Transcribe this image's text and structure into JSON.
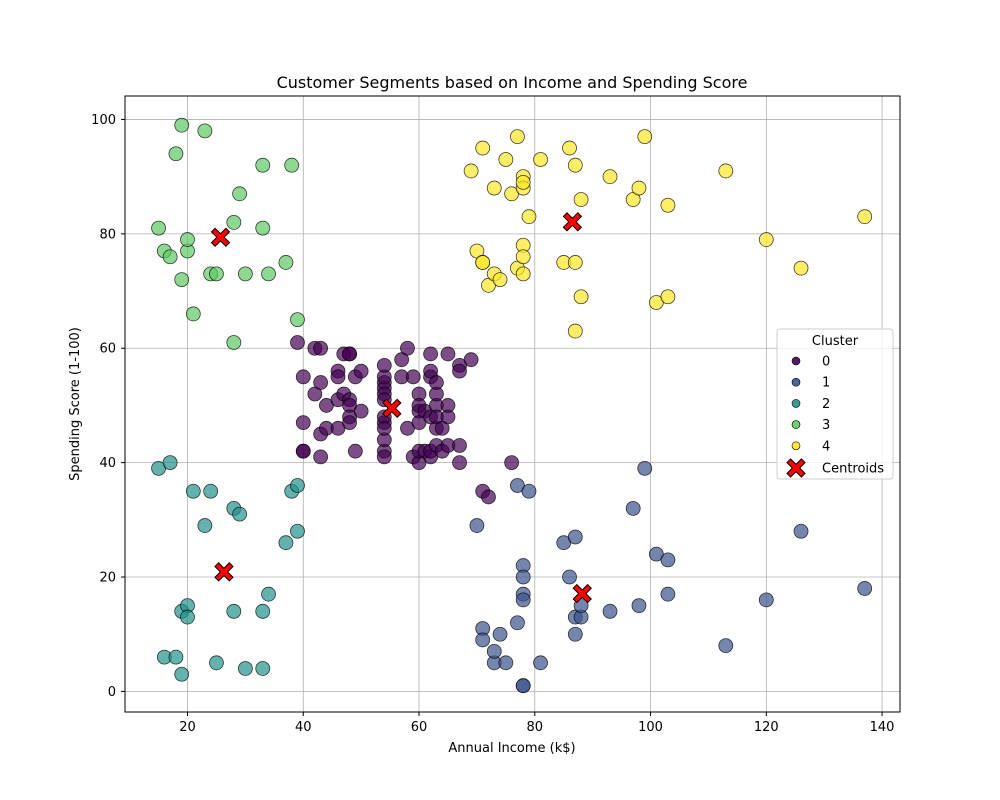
{
  "chart_data": {
    "type": "scatter",
    "title": "Customer Segments based on Income and Spending Score",
    "xlabel": "Annual Income (k$)",
    "ylabel": "Spending Score (1-100)",
    "xlim": [
      9.2,
      143.1
    ],
    "ylim": [
      -3.6,
      104.1
    ],
    "xticks": [
      20,
      40,
      60,
      80,
      100,
      120,
      140
    ],
    "yticks": [
      0,
      20,
      40,
      60,
      80,
      100
    ],
    "grid": true,
    "legend": {
      "title": "Cluster",
      "placement": "center-right"
    },
    "series": [
      {
        "name": "0",
        "color": "#440154",
        "points": [
          [
            39,
            61
          ],
          [
            40,
            55
          ],
          [
            40,
            47
          ],
          [
            40,
            42
          ],
          [
            40,
            42
          ],
          [
            42,
            52
          ],
          [
            42,
            60
          ],
          [
            43,
            54
          ],
          [
            43,
            60
          ],
          [
            43,
            45
          ],
          [
            43,
            41
          ],
          [
            44,
            50
          ],
          [
            44,
            46
          ],
          [
            46,
            51
          ],
          [
            46,
            46
          ],
          [
            46,
            56
          ],
          [
            46,
            55
          ],
          [
            47,
            52
          ],
          [
            47,
            59
          ],
          [
            48,
            51
          ],
          [
            48,
            59
          ],
          [
            48,
            50
          ],
          [
            48,
            48
          ],
          [
            48,
            59
          ],
          [
            48,
            47
          ],
          [
            49,
            55
          ],
          [
            49,
            42
          ],
          [
            50,
            49
          ],
          [
            50,
            56
          ],
          [
            54,
            47
          ],
          [
            54,
            54
          ],
          [
            54,
            53
          ],
          [
            54,
            48
          ],
          [
            54,
            52
          ],
          [
            54,
            42
          ],
          [
            54,
            51
          ],
          [
            54,
            55
          ],
          [
            54,
            41
          ],
          [
            54,
            44
          ],
          [
            54,
            57
          ],
          [
            54,
            46
          ],
          [
            57,
            58
          ],
          [
            57,
            55
          ],
          [
            58,
            60
          ],
          [
            58,
            46
          ],
          [
            59,
            55
          ],
          [
            59,
            41
          ],
          [
            60,
            49
          ],
          [
            60,
            40
          ],
          [
            60,
            42
          ],
          [
            60,
            52
          ],
          [
            60,
            47
          ],
          [
            60,
            50
          ],
          [
            61,
            42
          ],
          [
            61,
            49
          ],
          [
            62,
            41
          ],
          [
            62,
            48
          ],
          [
            62,
            59
          ],
          [
            62,
            55
          ],
          [
            62,
            56
          ],
          [
            62,
            42
          ],
          [
            63,
            50
          ],
          [
            63,
            46
          ],
          [
            63,
            43
          ],
          [
            63,
            48
          ],
          [
            63,
            52
          ],
          [
            63,
            54
          ],
          [
            64,
            42
          ],
          [
            64,
            46
          ],
          [
            65,
            48
          ],
          [
            65,
            50
          ],
          [
            65,
            43
          ],
          [
            65,
            59
          ],
          [
            67,
            43
          ],
          [
            67,
            57
          ],
          [
            67,
            56
          ],
          [
            67,
            40
          ],
          [
            69,
            58
          ],
          [
            71,
            35
          ],
          [
            72,
            34
          ],
          [
            76,
            40
          ]
        ]
      },
      {
        "name": "1",
        "color": "#3b528b",
        "points": [
          [
            70,
            29
          ],
          [
            71,
            11
          ],
          [
            71,
            9
          ],
          [
            73,
            5
          ],
          [
            73,
            7
          ],
          [
            74,
            10
          ],
          [
            75,
            5
          ],
          [
            77,
            12
          ],
          [
            77,
            36
          ],
          [
            78,
            22
          ],
          [
            78,
            17
          ],
          [
            78,
            20
          ],
          [
            78,
            16
          ],
          [
            78,
            1
          ],
          [
            78,
            1
          ],
          [
            79,
            35
          ],
          [
            81,
            5
          ],
          [
            85,
            26
          ],
          [
            86,
            20
          ],
          [
            87,
            27
          ],
          [
            87,
            13
          ],
          [
            87,
            10
          ],
          [
            88,
            13
          ],
          [
            88,
            15
          ],
          [
            93,
            14
          ],
          [
            97,
            32
          ],
          [
            98,
            15
          ],
          [
            99,
            39
          ],
          [
            101,
            24
          ],
          [
            103,
            17
          ],
          [
            103,
            23
          ],
          [
            113,
            8
          ],
          [
            120,
            16
          ],
          [
            126,
            28
          ],
          [
            137,
            18
          ]
        ]
      },
      {
        "name": "2",
        "color": "#21918c",
        "points": [
          [
            15,
            39
          ],
          [
            16,
            6
          ],
          [
            17,
            40
          ],
          [
            18,
            6
          ],
          [
            19,
            3
          ],
          [
            19,
            14
          ],
          [
            20,
            15
          ],
          [
            20,
            13
          ],
          [
            21,
            35
          ],
          [
            23,
            29
          ],
          [
            24,
            35
          ],
          [
            25,
            5
          ],
          [
            28,
            14
          ],
          [
            28,
            32
          ],
          [
            29,
            31
          ],
          [
            30,
            4
          ],
          [
            33,
            4
          ],
          [
            33,
            14
          ],
          [
            34,
            17
          ],
          [
            37,
            26
          ],
          [
            38,
            35
          ],
          [
            39,
            36
          ],
          [
            39,
            28
          ]
        ]
      },
      {
        "name": "3",
        "color": "#5ec962",
        "points": [
          [
            15,
            81
          ],
          [
            16,
            77
          ],
          [
            17,
            76
          ],
          [
            18,
            94
          ],
          [
            19,
            72
          ],
          [
            19,
            99
          ],
          [
            20,
            77
          ],
          [
            20,
            79
          ],
          [
            21,
            66
          ],
          [
            23,
            98
          ],
          [
            24,
            73
          ],
          [
            25,
            73
          ],
          [
            28,
            82
          ],
          [
            28,
            61
          ],
          [
            29,
            87
          ],
          [
            30,
            73
          ],
          [
            33,
            92
          ],
          [
            33,
            81
          ],
          [
            34,
            73
          ],
          [
            37,
            75
          ],
          [
            38,
            92
          ],
          [
            39,
            65
          ]
        ]
      },
      {
        "name": "4",
        "color": "#fde725",
        "points": [
          [
            69,
            91
          ],
          [
            70,
            77
          ],
          [
            71,
            95
          ],
          [
            71,
            75
          ],
          [
            71,
            75
          ],
          [
            72,
            71
          ],
          [
            73,
            88
          ],
          [
            73,
            73
          ],
          [
            74,
            72
          ],
          [
            75,
            93
          ],
          [
            76,
            87
          ],
          [
            77,
            97
          ],
          [
            77,
            74
          ],
          [
            78,
            90
          ],
          [
            78,
            88
          ],
          [
            78,
            89
          ],
          [
            78,
            73
          ],
          [
            78,
            78
          ],
          [
            78,
            76
          ],
          [
            79,
            83
          ],
          [
            81,
            93
          ],
          [
            85,
            75
          ],
          [
            86,
            95
          ],
          [
            87,
            63
          ],
          [
            87,
            75
          ],
          [
            87,
            92
          ],
          [
            88,
            86
          ],
          [
            88,
            69
          ],
          [
            93,
            90
          ],
          [
            97,
            86
          ],
          [
            98,
            88
          ],
          [
            99,
            97
          ],
          [
            101,
            68
          ],
          [
            103,
            85
          ],
          [
            103,
            69
          ],
          [
            113,
            91
          ],
          [
            120,
            79
          ],
          [
            126,
            74
          ],
          [
            137,
            83
          ]
        ]
      }
    ],
    "centroids": {
      "name": "Centroids",
      "color": "#ff0000",
      "points": [
        [
          55.3,
          49.5
        ],
        [
          88.2,
          17.1
        ],
        [
          26.3,
          20.9
        ],
        [
          25.7,
          79.4
        ],
        [
          86.5,
          82.1
        ]
      ]
    }
  }
}
